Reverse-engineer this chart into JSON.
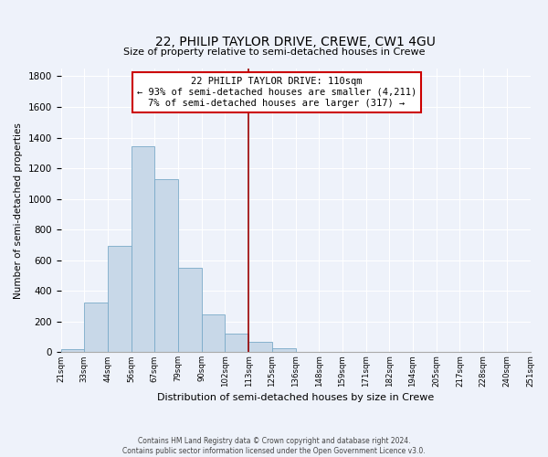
{
  "title": "22, PHILIP TAYLOR DRIVE, CREWE, CW1 4GU",
  "subtitle": "Size of property relative to semi-detached houses in Crewe",
  "xlabel": "Distribution of semi-detached houses by size in Crewe",
  "ylabel": "Number of semi-detached properties",
  "bar_color": "#c8d8e8",
  "bar_edge_color": "#7aaac8",
  "bin_labels": [
    "21sqm",
    "33sqm",
    "44sqm",
    "56sqm",
    "67sqm",
    "79sqm",
    "90sqm",
    "102sqm",
    "113sqm",
    "125sqm",
    "136sqm",
    "148sqm",
    "159sqm",
    "171sqm",
    "182sqm",
    "194sqm",
    "205sqm",
    "217sqm",
    "228sqm",
    "240sqm",
    "251sqm"
  ],
  "bar_heights": [
    20,
    325,
    695,
    1345,
    1130,
    550,
    245,
    120,
    65,
    25,
    5,
    0,
    0,
    0,
    0,
    0,
    0,
    0,
    0,
    0
  ],
  "ylim": [
    0,
    1850
  ],
  "yticks": [
    0,
    200,
    400,
    600,
    800,
    1000,
    1200,
    1400,
    1600,
    1800
  ],
  "vline_x": 8.0,
  "vline_color": "#990000",
  "annotation_title": "22 PHILIP TAYLOR DRIVE: 110sqm",
  "annotation_line1": "← 93% of semi-detached houses are smaller (4,211)",
  "annotation_line2": "7% of semi-detached houses are larger (317) →",
  "annotation_box_color": "#ffffff",
  "annotation_box_edge": "#cc0000",
  "footer1": "Contains HM Land Registry data © Crown copyright and database right 2024.",
  "footer2": "Contains public sector information licensed under the Open Government Licence v3.0.",
  "background_color": "#eef2fa",
  "grid_color": "#ffffff"
}
